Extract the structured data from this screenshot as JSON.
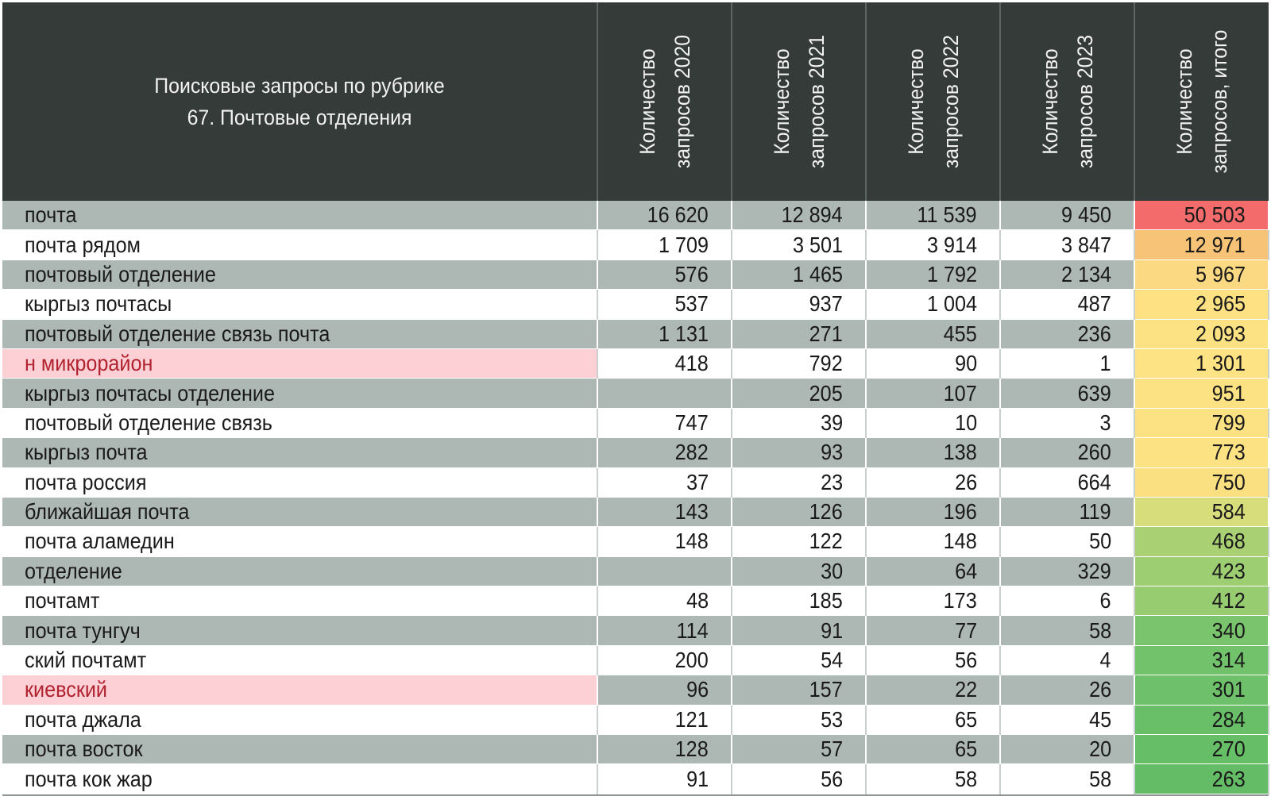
{
  "header": {
    "title_line1": "Поисковые запросы по рубрике",
    "title_line2": "67. Почтовые отделения",
    "columns": [
      {
        "line1": "Количество",
        "line2": "запросов 2020"
      },
      {
        "line1": "Количество",
        "line2": "запросов 2021"
      },
      {
        "line1": "Количество",
        "line2": "запросов 2022"
      },
      {
        "line1": "Количество",
        "line2": "запросов 2023"
      },
      {
        "line1": "Количество",
        "line2": "запросов, итого"
      }
    ]
  },
  "colors": {
    "header_bg": "#343b39",
    "row_shade": "#adb7b3",
    "flag_bg": "#fdd0d6",
    "flag_text": "#b0222e",
    "total_scale": [
      "#f36b6b",
      "#f7c477",
      "#fde183",
      "#d8dd7c",
      "#8ecb70",
      "#64bd66"
    ]
  },
  "rows": [
    {
      "name": "почта",
      "v2020": "16 620",
      "v2021": "12 894",
      "v2022": "11 539",
      "v2023": "9 450",
      "total": "50 503",
      "total_color": "#f36b6b",
      "flag": false
    },
    {
      "name": "почта рядом",
      "v2020": "1 709",
      "v2021": "3 501",
      "v2022": "3 914",
      "v2023": "3 847",
      "total": "12 971",
      "total_color": "#f7c477",
      "flag": false
    },
    {
      "name": "почтовый отделение",
      "v2020": "576",
      "v2021": "1 465",
      "v2022": "1 792",
      "v2023": "2 134",
      "total": "5 967",
      "total_color": "#fbd982",
      "flag": false
    },
    {
      "name": "кыргыз почтасы",
      "v2020": "537",
      "v2021": "937",
      "v2022": "1 004",
      "v2023": "487",
      "total": "2 965",
      "total_color": "#fde183",
      "flag": false
    },
    {
      "name": "почтовый отделение связь почта",
      "v2020": "1 131",
      "v2021": "271",
      "v2022": "455",
      "v2023": "236",
      "total": "2 093",
      "total_color": "#fde283",
      "flag": false
    },
    {
      "name": "н микрорайон",
      "v2020": "418",
      "v2021": "792",
      "v2022": "90",
      "v2023": "1",
      "total": "1 301",
      "total_color": "#fee384",
      "flag": true
    },
    {
      "name": "кыргыз почтасы отделение",
      "v2020": "",
      "v2021": "205",
      "v2022": "107",
      "v2023": "639",
      "total": "951",
      "total_color": "#fde283",
      "flag": false
    },
    {
      "name": "почтовый отделение связь",
      "v2020": "747",
      "v2021": "39",
      "v2022": "10",
      "v2023": "3",
      "total": "799",
      "total_color": "#fde283",
      "flag": false
    },
    {
      "name": "кыргыз почта",
      "v2020": "282",
      "v2021": "93",
      "v2022": "138",
      "v2023": "260",
      "total": "773",
      "total_color": "#fde283",
      "flag": false
    },
    {
      "name": "почта россия",
      "v2020": "37",
      "v2021": "23",
      "v2022": "26",
      "v2023": "664",
      "total": "750",
      "total_color": "#fbe082",
      "flag": false
    },
    {
      "name": "ближайшая почта",
      "v2020": "143",
      "v2021": "126",
      "v2022": "196",
      "v2023": "119",
      "total": "584",
      "total_color": "#d8dd7c",
      "flag": false
    },
    {
      "name": "почта аламедин",
      "v2020": "148",
      "v2021": "122",
      "v2022": "148",
      "v2023": "50",
      "total": "468",
      "total_color": "#a9d173",
      "flag": false
    },
    {
      "name": "отделение",
      "v2020": "",
      "v2021": "30",
      "v2022": "64",
      "v2023": "329",
      "total": "423",
      "total_color": "#9dce72",
      "flag": false
    },
    {
      "name": "почтамт",
      "v2020": "48",
      "v2021": "185",
      "v2022": "173",
      "v2023": "6",
      "total": "412",
      "total_color": "#97cc71",
      "flag": false
    },
    {
      "name": "почта тунгуч",
      "v2020": "114",
      "v2021": "91",
      "v2022": "77",
      "v2023": "58",
      "total": "340",
      "total_color": "#79c46c",
      "flag": false
    },
    {
      "name": "ский почтамт",
      "v2020": "200",
      "v2021": "54",
      "v2022": "56",
      "v2023": "4",
      "total": "314",
      "total_color": "#72c26b",
      "flag": false
    },
    {
      "name": "киевский",
      "v2020": "96",
      "v2021": "157",
      "v2022": "22",
      "v2023": "26",
      "total": "301",
      "total_color": "#6ec16a",
      "flag": true
    },
    {
      "name": "почта джала",
      "v2020": "121",
      "v2021": "53",
      "v2022": "65",
      "v2023": "45",
      "total": "284",
      "total_color": "#69bf68",
      "flag": false
    },
    {
      "name": "почта восток",
      "v2020": "128",
      "v2021": "57",
      "v2022": "65",
      "v2023": "20",
      "total": "270",
      "total_color": "#66be67",
      "flag": false
    },
    {
      "name": "почта кок жар",
      "v2020": "91",
      "v2021": "56",
      "v2022": "58",
      "v2023": "58",
      "total": "263",
      "total_color": "#64bd66",
      "flag": false
    }
  ]
}
